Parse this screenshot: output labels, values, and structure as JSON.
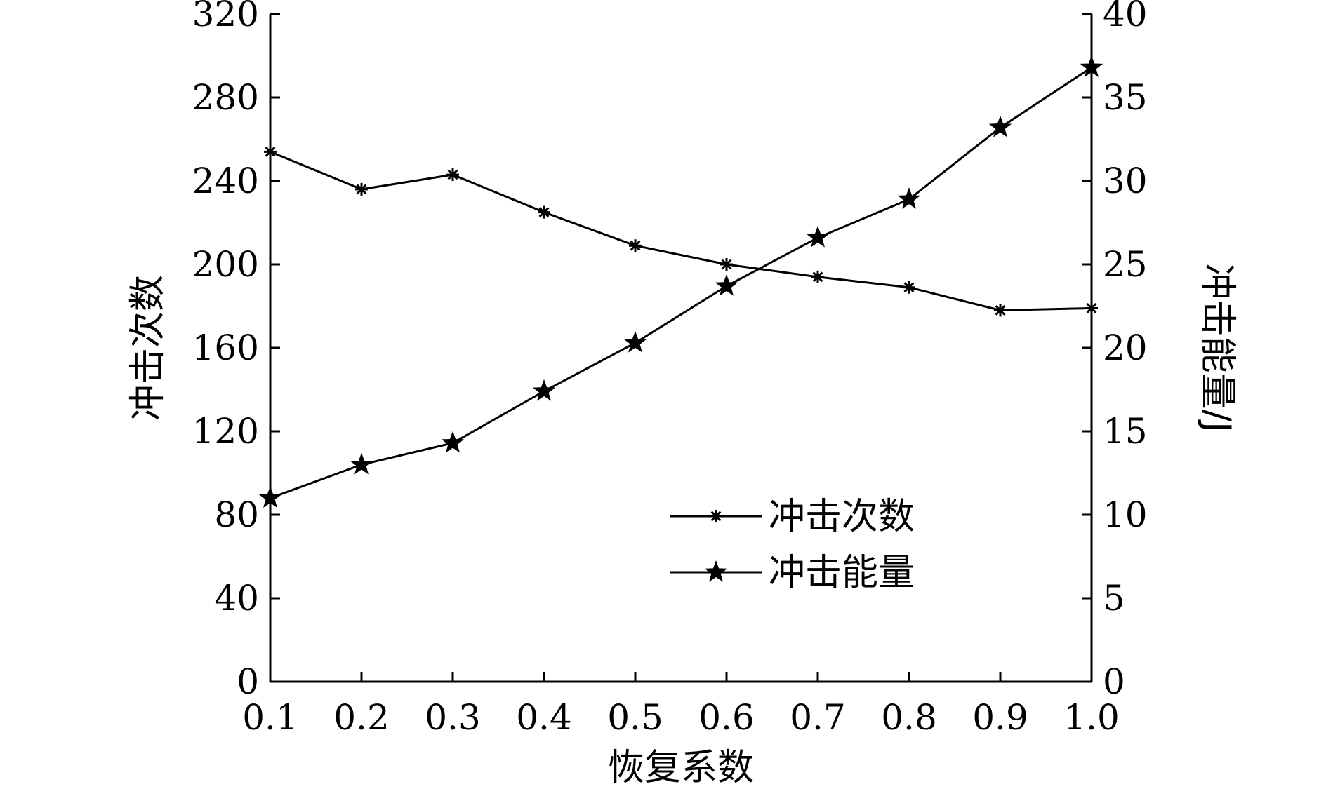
{
  "chart_data": {
    "type": "line",
    "title": "",
    "xlabel": "恢复系数",
    "ylabel_left": "冲击次数",
    "ylabel_right": "冲击能量/J",
    "x": [
      0.1,
      0.2,
      0.3,
      0.4,
      0.5,
      0.6,
      0.7,
      0.8,
      0.9,
      1.0
    ],
    "x_tick_labels": [
      "0.1",
      "0.2",
      "0.3",
      "0.4",
      "0.5",
      "0.6",
      "0.7",
      "0.8",
      "0.9",
      "1.0"
    ],
    "xlim": [
      0.1,
      1.0
    ],
    "ylim_left": [
      0,
      320
    ],
    "ylim_right": [
      0,
      40
    ],
    "y_left_tick_labels": [
      "0",
      "40",
      "80",
      "120",
      "160",
      "200",
      "240",
      "280",
      "320"
    ],
    "y_right_tick_labels": [
      "0",
      "5",
      "10",
      "15",
      "20",
      "25",
      "30",
      "35",
      "40"
    ],
    "grid": false,
    "legend_position": "lower-right",
    "series": [
      {
        "name": "冲击次数",
        "axis": "left",
        "marker": "asterisk",
        "values": [
          254,
          236,
          243,
          225,
          209,
          200,
          194,
          189,
          178,
          179
        ]
      },
      {
        "name": "冲击能量",
        "axis": "right",
        "marker": "star",
        "values": [
          11.0,
          13.0,
          14.3,
          17.4,
          20.3,
          23.7,
          26.6,
          28.9,
          33.2,
          36.8
        ]
      }
    ],
    "colors": {
      "line": "#000000",
      "background": "#ffffff"
    }
  }
}
